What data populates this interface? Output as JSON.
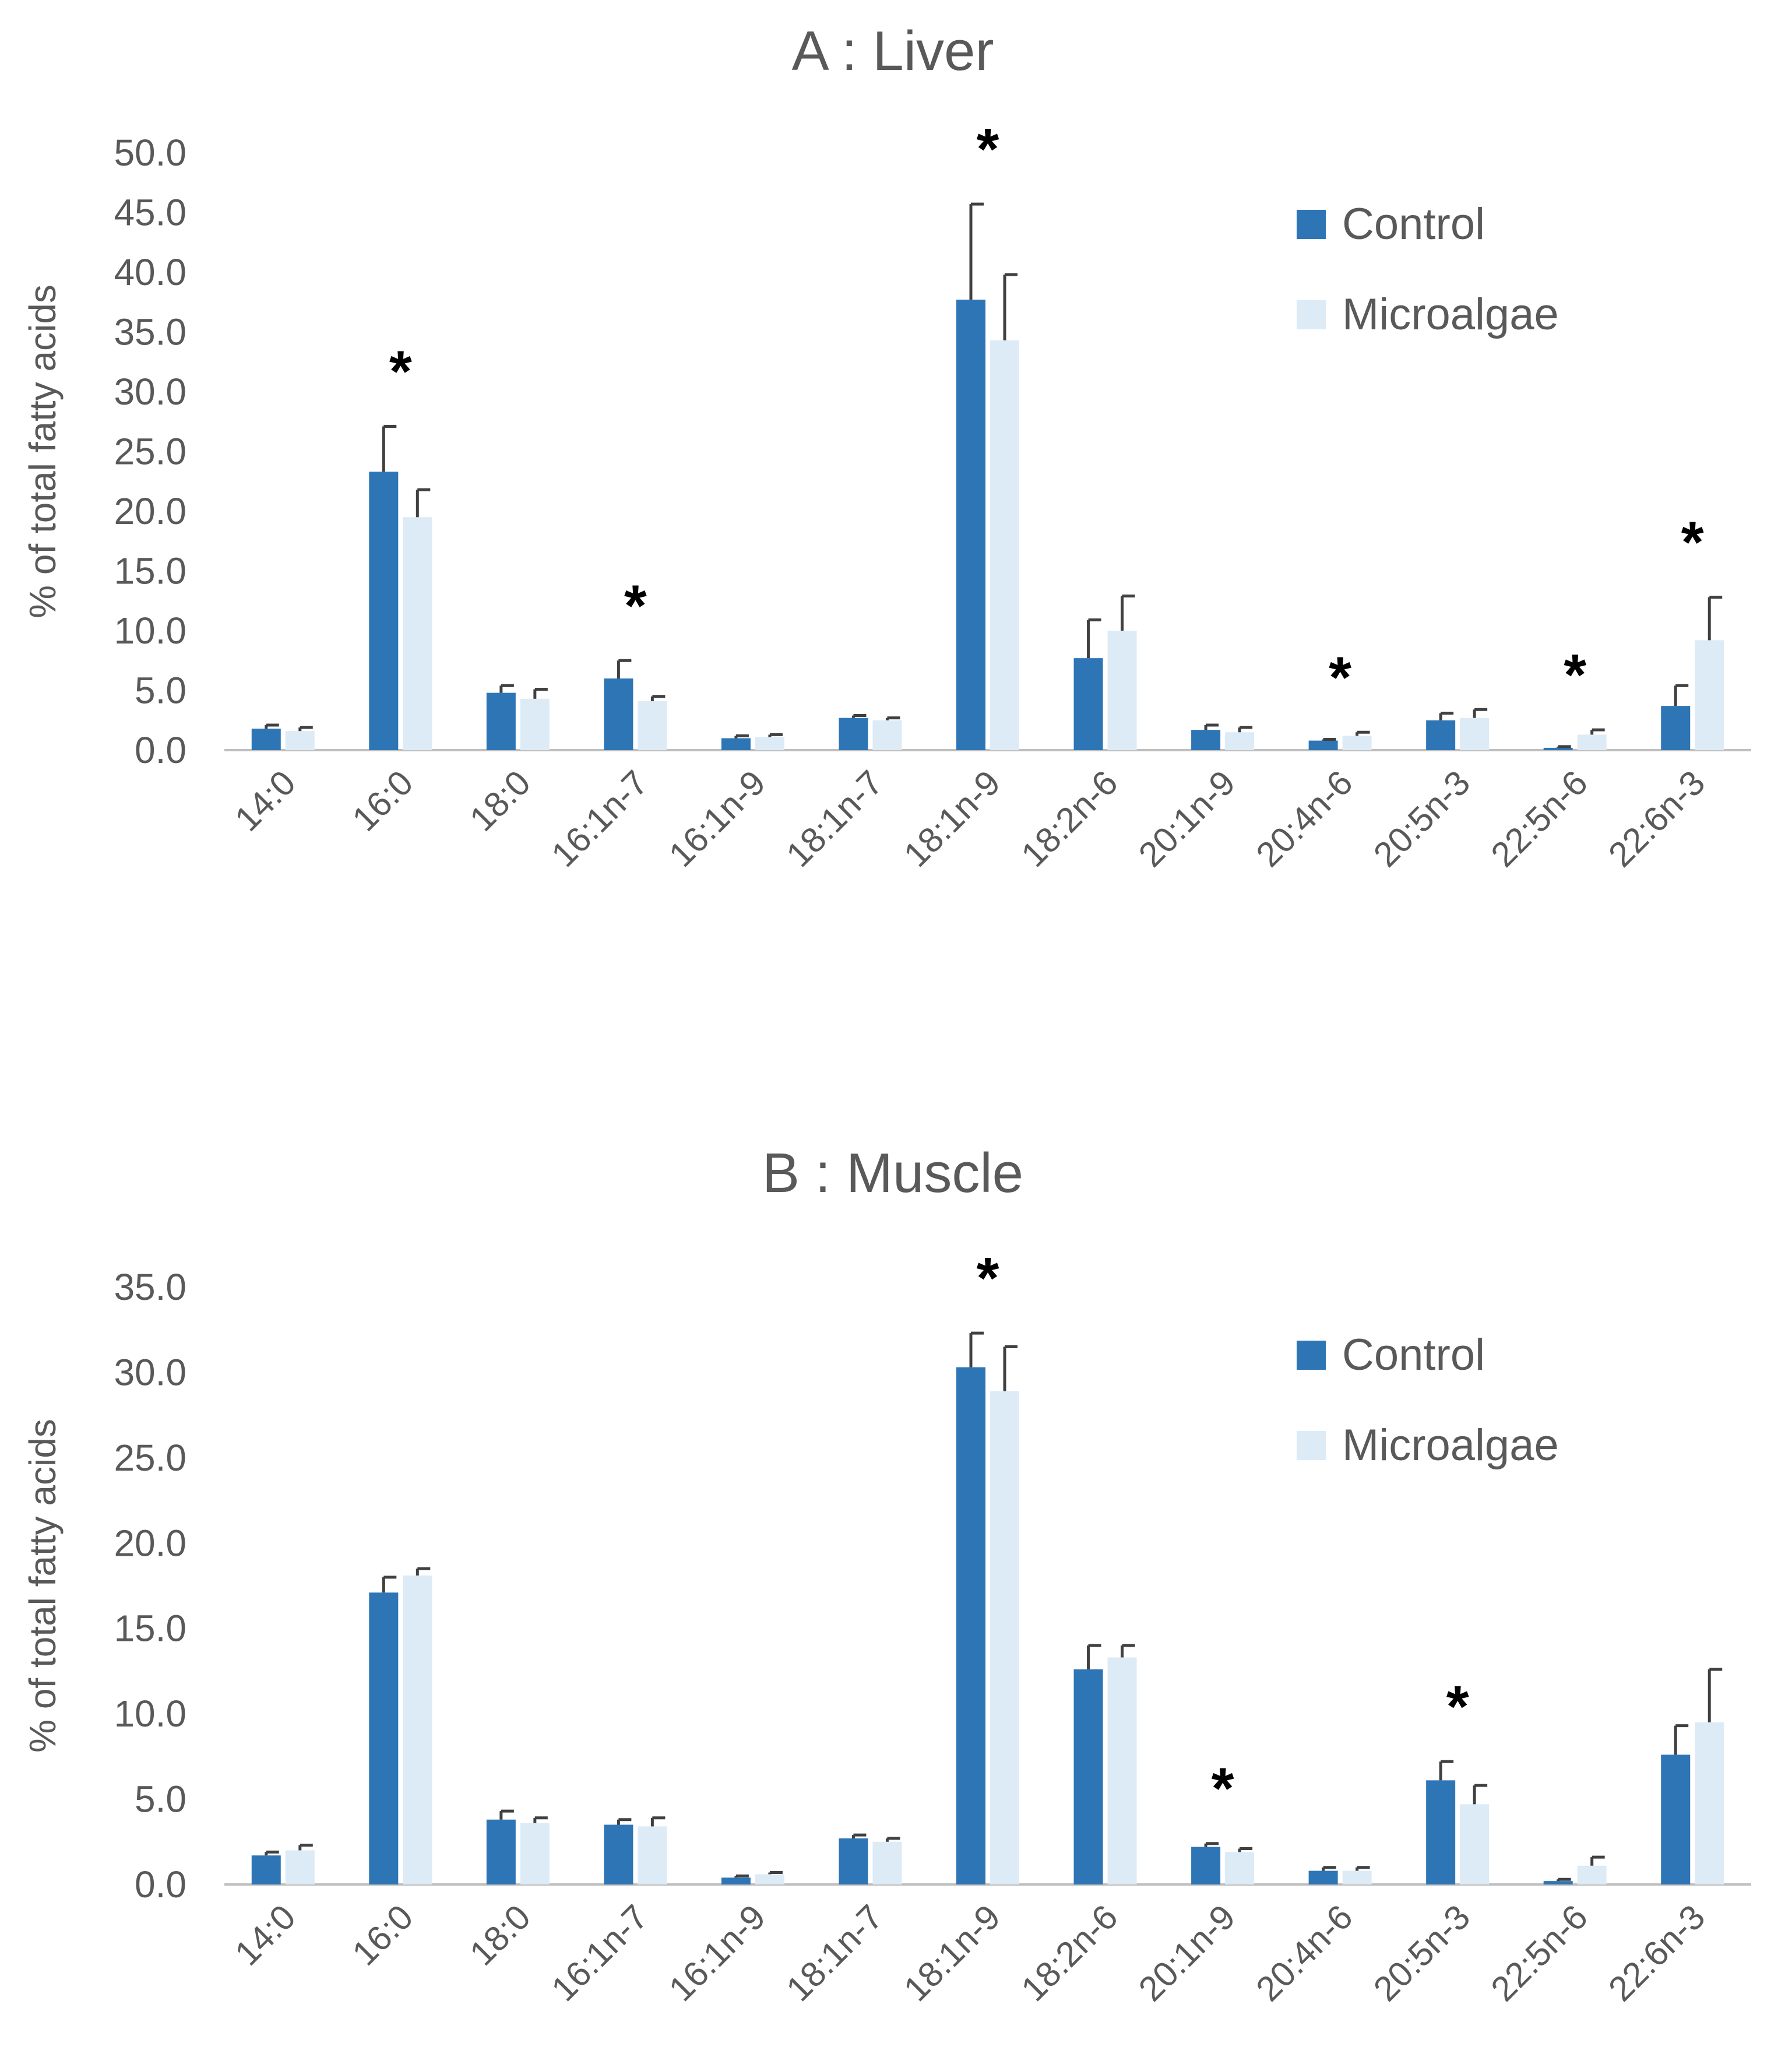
{
  "colors": {
    "control": "#2e75b6",
    "microalgae": "#ddebf7",
    "error_bar": "#404040",
    "axis": "#bfbfbf",
    "text": "#595959",
    "star": "#000000"
  },
  "chart_data": [
    {
      "type": "bar",
      "title": "A : Liver",
      "xlabel": "",
      "ylabel": "% of total fatty acids",
      "ylim": [
        0,
        50
      ],
      "yticks": [
        "0.0",
        "5.0",
        "10.0",
        "15.0",
        "20.0",
        "25.0",
        "30.0",
        "35.0",
        "40.0",
        "45.0",
        "50.0"
      ],
      "ytick_values": [
        0,
        5,
        10,
        15,
        20,
        25,
        30,
        35,
        40,
        45,
        50
      ],
      "legend_position": "top-right",
      "categories": [
        "14:0",
        "16:0",
        "18:0",
        "16:1n-7",
        "16:1n-9",
        "18:1n-7",
        "18:1n-9",
        "18:2n-6",
        "20:1n-9",
        "20:4n-6",
        "20:5n-3",
        "22:5n-6",
        "22:6n-3"
      ],
      "series": [
        {
          "name": "Control",
          "values": [
            1.8,
            23.3,
            4.8,
            6.0,
            1.0,
            2.7,
            37.7,
            7.7,
            1.7,
            0.8,
            2.5,
            0.2,
            3.7
          ],
          "errors": [
            0.3,
            3.8,
            0.6,
            1.5,
            0.2,
            0.2,
            8.0,
            3.2,
            0.4,
            0.1,
            0.6,
            0.1,
            1.7
          ]
        },
        {
          "name": "Microalgae",
          "values": [
            1.6,
            19.5,
            4.3,
            4.1,
            1.1,
            2.5,
            34.3,
            10.0,
            1.5,
            1.2,
            2.7,
            1.3,
            9.2
          ],
          "errors": [
            0.3,
            2.3,
            0.8,
            0.4,
            0.2,
            0.2,
            5.5,
            2.9,
            0.4,
            0.3,
            0.7,
            0.4,
            3.6
          ]
        }
      ],
      "significant": [
        false,
        true,
        false,
        true,
        false,
        false,
        true,
        false,
        false,
        true,
        false,
        true,
        true
      ],
      "significance_marker": "*"
    },
    {
      "type": "bar",
      "title": "B : Muscle",
      "xlabel": "",
      "ylabel": "% of total fatty acids",
      "ylim": [
        0,
        35
      ],
      "yticks": [
        "0.0",
        "5.0",
        "10.0",
        "15.0",
        "20.0",
        "25.0",
        "30.0",
        "35.0"
      ],
      "ytick_values": [
        0,
        5,
        10,
        15,
        20,
        25,
        30,
        35
      ],
      "legend_position": "top-right",
      "categories": [
        "14:0",
        "16:0",
        "18:0",
        "16:1n-7",
        "16:1n-9",
        "18:1n-7",
        "18:1n-9",
        "18:2n-6",
        "20:1n-9",
        "20:4n-6",
        "20:5n-3",
        "22:5n-6",
        "22:6n-3"
      ],
      "series": [
        {
          "name": "Control",
          "values": [
            1.7,
            17.1,
            3.8,
            3.5,
            0.4,
            2.7,
            30.3,
            12.6,
            2.2,
            0.8,
            6.1,
            0.2,
            7.6
          ],
          "errors": [
            0.2,
            0.9,
            0.5,
            0.3,
            0.1,
            0.2,
            2.0,
            1.4,
            0.2,
            0.2,
            1.1,
            0.1,
            1.7
          ]
        },
        {
          "name": "Microalgae",
          "values": [
            2.0,
            18.1,
            3.6,
            3.4,
            0.6,
            2.5,
            28.9,
            13.3,
            1.9,
            0.8,
            4.7,
            1.1,
            9.5
          ],
          "errors": [
            0.3,
            0.4,
            0.3,
            0.5,
            0.1,
            0.2,
            2.6,
            0.7,
            0.2,
            0.2,
            1.1,
            0.5,
            3.1
          ]
        }
      ],
      "significant": [
        false,
        false,
        false,
        false,
        false,
        false,
        true,
        false,
        true,
        false,
        true,
        false,
        false
      ],
      "significance_marker": "*"
    }
  ]
}
